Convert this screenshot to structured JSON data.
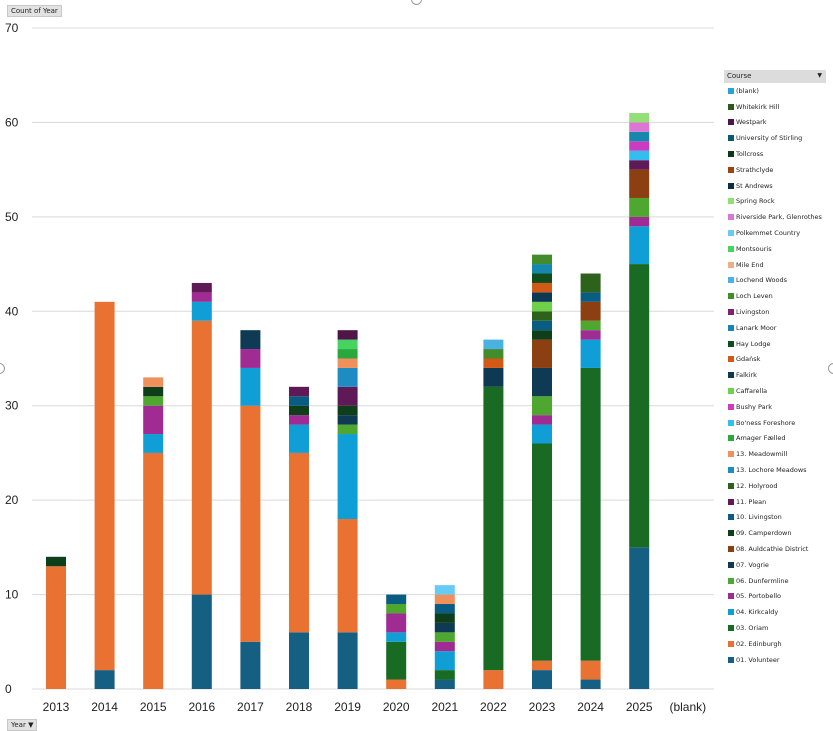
{
  "value_field_label": "Count of Year",
  "axis_field_label": "Year",
  "legend_field_label": "Course",
  "chart_data": {
    "type": "bar",
    "stacked": true,
    "title": "",
    "xlabel": "",
    "ylabel": "",
    "ylim": [
      0,
      70
    ],
    "yticks": [
      0,
      10,
      20,
      30,
      40,
      50,
      60,
      70
    ],
    "grid": true,
    "legend_position": "right",
    "legend_title": "Course",
    "categories": [
      "2013",
      "2014",
      "2015",
      "2016",
      "2017",
      "2018",
      "2019",
      "2020",
      "2021",
      "2022",
      "2023",
      "2024",
      "2025",
      "(blank)"
    ],
    "series": [
      {
        "name": "01. Volunteer",
        "color": "#156082",
        "values": [
          0,
          2,
          0,
          10,
          5,
          6,
          6,
          0,
          1,
          0,
          2,
          1,
          15,
          0
        ]
      },
      {
        "name": "02. Edinburgh",
        "color": "#E97132",
        "values": [
          13,
          39,
          25,
          29,
          25,
          19,
          12,
          1,
          0,
          2,
          1,
          2,
          0,
          0
        ]
      },
      {
        "name": "03. Oriam",
        "color": "#196B24",
        "values": [
          0,
          0,
          0,
          0,
          0,
          0,
          0,
          4,
          1,
          30,
          23,
          31,
          30,
          0
        ]
      },
      {
        "name": "04. Kirkcaldy",
        "color": "#0F9ED5",
        "values": [
          0,
          0,
          2,
          2,
          4,
          3,
          9,
          1,
          2,
          0,
          2,
          3,
          4,
          0
        ]
      },
      {
        "name": "05. Portobello",
        "color": "#A02B93",
        "values": [
          0,
          0,
          3,
          1,
          2,
          1,
          0,
          2,
          1,
          0,
          1,
          1,
          1,
          0
        ]
      },
      {
        "name": "06. Dunfermline",
        "color": "#4EA72E",
        "values": [
          0,
          0,
          1,
          0,
          0,
          0,
          1,
          1,
          1,
          0,
          2,
          1,
          2,
          0
        ]
      },
      {
        "name": "07. Vogrie",
        "color": "#0E3A53",
        "values": [
          0,
          0,
          0,
          0,
          2,
          0,
          1,
          0,
          1,
          0,
          3,
          0,
          0,
          0
        ]
      },
      {
        "name": "08. Auldcathie District",
        "color": "#8C3F10",
        "values": [
          0,
          0,
          0,
          0,
          0,
          0,
          0,
          0,
          0,
          0,
          3,
          2,
          3,
          0
        ]
      },
      {
        "name": "09. Camperdown",
        "color": "#0F3F1A",
        "values": [
          1,
          0,
          1,
          0,
          0,
          1,
          1,
          0,
          1,
          0,
          1,
          0,
          0,
          0
        ]
      },
      {
        "name": "10. Livingston",
        "color": "#095D82",
        "values": [
          0,
          0,
          0,
          0,
          0,
          1,
          0,
          1,
          1,
          0,
          1,
          1,
          0,
          0
        ]
      },
      {
        "name": "11. Plean",
        "color": "#5F1956",
        "values": [
          0,
          0,
          0,
          1,
          0,
          1,
          2,
          0,
          0,
          0,
          0,
          0,
          1,
          0
        ]
      },
      {
        "name": "12. Holyrood",
        "color": "#2D621B",
        "values": [
          0,
          0,
          0,
          0,
          0,
          0,
          0,
          0,
          0,
          0,
          1,
          2,
          0,
          0
        ]
      },
      {
        "name": "13. Lochore Meadows",
        "color": "#1E8BC3",
        "values": [
          0,
          0,
          0,
          0,
          0,
          0,
          2,
          0,
          0,
          0,
          0,
          0,
          0,
          0
        ]
      },
      {
        "name": "13. Meadowmill",
        "color": "#F0905D",
        "values": [
          0,
          0,
          1,
          0,
          0,
          0,
          1,
          0,
          1,
          0,
          0,
          0,
          0,
          0
        ]
      },
      {
        "name": "Amager Fælled",
        "color": "#2AA83D",
        "values": [
          0,
          0,
          0,
          0,
          0,
          0,
          1,
          0,
          0,
          0,
          0,
          0,
          0,
          0
        ]
      },
      {
        "name": "Bo'ness Foreshore",
        "color": "#33BEEF",
        "values": [
          0,
          0,
          0,
          0,
          0,
          0,
          0,
          0,
          0,
          0,
          0,
          0,
          1,
          0
        ]
      },
      {
        "name": "Bushy Park",
        "color": "#CC3CC2",
        "values": [
          0,
          0,
          0,
          0,
          0,
          0,
          0,
          0,
          0,
          0,
          0,
          0,
          1,
          0
        ]
      },
      {
        "name": "Caffarella",
        "color": "#6ED14A",
        "values": [
          0,
          0,
          0,
          0,
          0,
          0,
          0,
          0,
          0,
          0,
          1,
          0,
          0,
          0
        ]
      },
      {
        "name": "Falkirk",
        "color": "#0D3A52",
        "values": [
          0,
          0,
          0,
          0,
          0,
          0,
          0,
          0,
          0,
          2,
          1,
          0,
          0,
          0
        ]
      },
      {
        "name": "Gdańsk",
        "color": "#D35A16",
        "values": [
          0,
          0,
          0,
          0,
          0,
          0,
          0,
          0,
          0,
          1,
          1,
          0,
          0,
          0
        ]
      },
      {
        "name": "Hay Lodge",
        "color": "#104D1C",
        "values": [
          0,
          0,
          0,
          0,
          0,
          0,
          0,
          0,
          0,
          0,
          1,
          0,
          0,
          0
        ]
      },
      {
        "name": "Lanark Moor",
        "color": "#1688AD",
        "values": [
          0,
          0,
          0,
          0,
          0,
          0,
          0,
          0,
          0,
          0,
          1,
          0,
          1,
          0
        ]
      },
      {
        "name": "Livingston",
        "color": "#7B2372",
        "values": [
          0,
          0,
          0,
          0,
          0,
          0,
          0,
          0,
          0,
          0,
          0,
          0,
          0,
          0
        ]
      },
      {
        "name": "Loch Leven",
        "color": "#438C2B",
        "values": [
          0,
          0,
          0,
          0,
          0,
          0,
          0,
          0,
          0,
          1,
          1,
          0,
          0,
          0
        ]
      },
      {
        "name": "Lochend Woods",
        "color": "#4AB2E3",
        "values": [
          0,
          0,
          0,
          0,
          0,
          0,
          0,
          0,
          0,
          1,
          0,
          0,
          0,
          0
        ]
      },
      {
        "name": "Mile End",
        "color": "#F2AC88",
        "values": [
          0,
          0,
          0,
          0,
          0,
          0,
          0,
          0,
          0,
          0,
          0,
          0,
          0,
          0
        ]
      },
      {
        "name": "Montsouris",
        "color": "#45D45F",
        "values": [
          0,
          0,
          0,
          0,
          0,
          0,
          1,
          0,
          0,
          0,
          0,
          0,
          0,
          0
        ]
      },
      {
        "name": "Polkemmet Country",
        "color": "#66CCF5",
        "values": [
          0,
          0,
          0,
          0,
          0,
          0,
          0,
          0,
          1,
          0,
          0,
          0,
          0,
          0
        ]
      },
      {
        "name": "Riverside Park, Glenrothes",
        "color": "#DB76D4",
        "values": [
          0,
          0,
          0,
          0,
          0,
          0,
          0,
          0,
          0,
          0,
          0,
          0,
          1,
          0
        ]
      },
      {
        "name": "Spring Rock",
        "color": "#92DE77",
        "values": [
          0,
          0,
          0,
          0,
          0,
          0,
          0,
          0,
          0,
          0,
          0,
          0,
          1,
          0
        ]
      },
      {
        "name": "St Andrews",
        "color": "#0C2D44",
        "values": [
          0,
          0,
          0,
          0,
          0,
          0,
          0,
          0,
          0,
          0,
          0,
          0,
          0,
          0
        ]
      },
      {
        "name": "Strathclyde",
        "color": "#9B4413",
        "values": [
          0,
          0,
          0,
          0,
          0,
          0,
          0,
          0,
          0,
          0,
          0,
          0,
          0,
          0
        ]
      },
      {
        "name": "Tollcross",
        "color": "#0C3A18",
        "values": [
          0,
          0,
          0,
          0,
          0,
          0,
          0,
          0,
          0,
          0,
          0,
          0,
          0,
          0
        ]
      },
      {
        "name": "University of Stirling",
        "color": "#0B5673",
        "values": [
          0,
          0,
          0,
          0,
          0,
          0,
          0,
          0,
          0,
          0,
          0,
          0,
          0,
          0
        ]
      },
      {
        "name": "Westpark",
        "color": "#4F1549",
        "values": [
          0,
          0,
          0,
          0,
          0,
          0,
          1,
          0,
          0,
          0,
          0,
          0,
          0,
          0
        ]
      },
      {
        "name": "Whitekirk Hill",
        "color": "#2D5A1B",
        "values": [
          0,
          0,
          0,
          0,
          0,
          0,
          0,
          0,
          0,
          0,
          0,
          0,
          0,
          0
        ]
      },
      {
        "name": "(blank)",
        "color": "#2AA2D8",
        "values": [
          0,
          0,
          0,
          0,
          0,
          0,
          0,
          0,
          0,
          0,
          0,
          0,
          0,
          0
        ]
      }
    ]
  }
}
